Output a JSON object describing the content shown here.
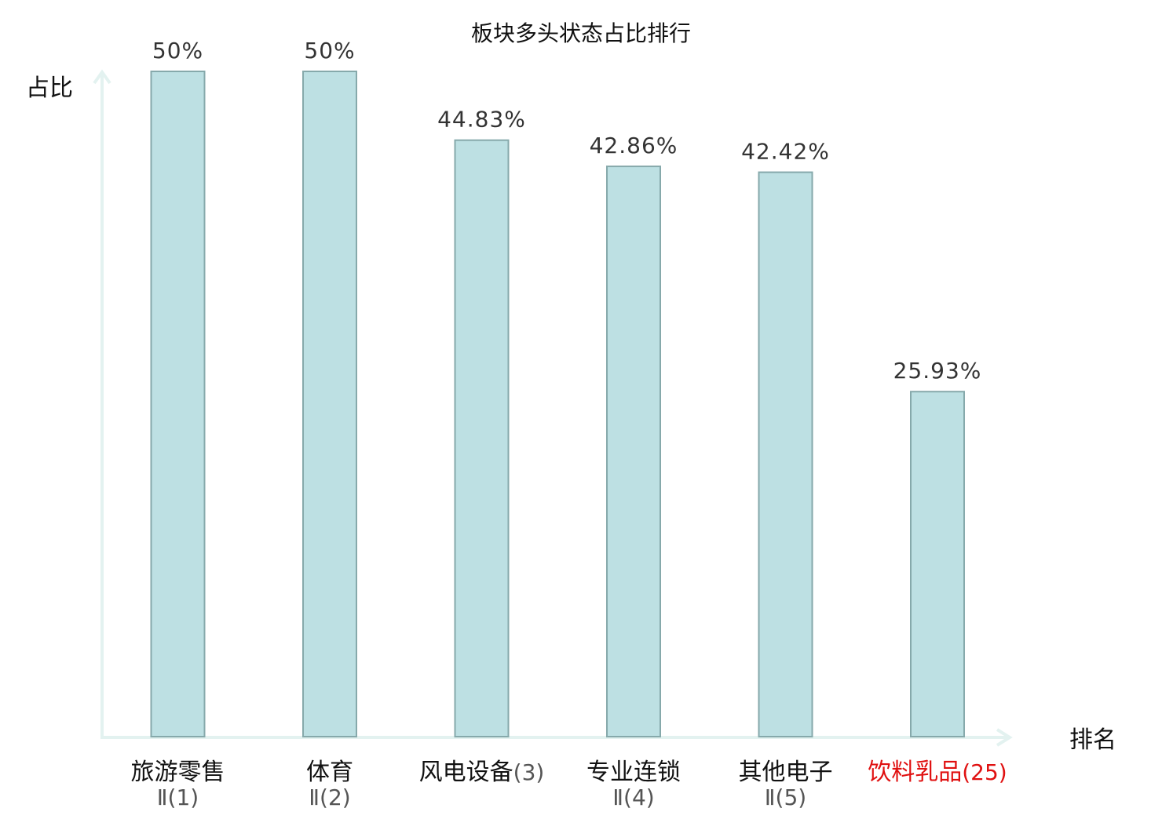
{
  "chart_data": {
    "type": "bar",
    "title": "板块多头状态占比排行",
    "ylabel": "占比",
    "xlabel": "排名",
    "ylim": [
      0,
      50
    ],
    "grid": false,
    "legend": "none",
    "categories": [
      {
        "name": "旅游零售",
        "suffix": "Ⅱ(1)",
        "highlight": false
      },
      {
        "name": "体育",
        "suffix": "Ⅱ(2)",
        "highlight": false
      },
      {
        "name": "风电设备",
        "suffix": "(3)",
        "highlight": false
      },
      {
        "name": "专业连锁",
        "suffix": "Ⅱ(4)",
        "highlight": false
      },
      {
        "name": "其他电子",
        "suffix": "Ⅱ(5)",
        "highlight": false
      },
      {
        "name": "饮料乳品",
        "suffix": "(25)",
        "highlight": true
      }
    ],
    "values": [
      50,
      50,
      44.83,
      42.86,
      42.42,
      25.93
    ],
    "value_labels": [
      "50%",
      "50%",
      "44.83%",
      "42.86%",
      "42.42%",
      "25.93%"
    ],
    "colors": {
      "bar_fill": "#bde0e3",
      "bar_stroke": "#86a9ab",
      "axis": "#e3f2f0",
      "text": "#111111",
      "value_text": "#333333",
      "suffix_text": "#555555",
      "highlight": "#e01010"
    }
  }
}
